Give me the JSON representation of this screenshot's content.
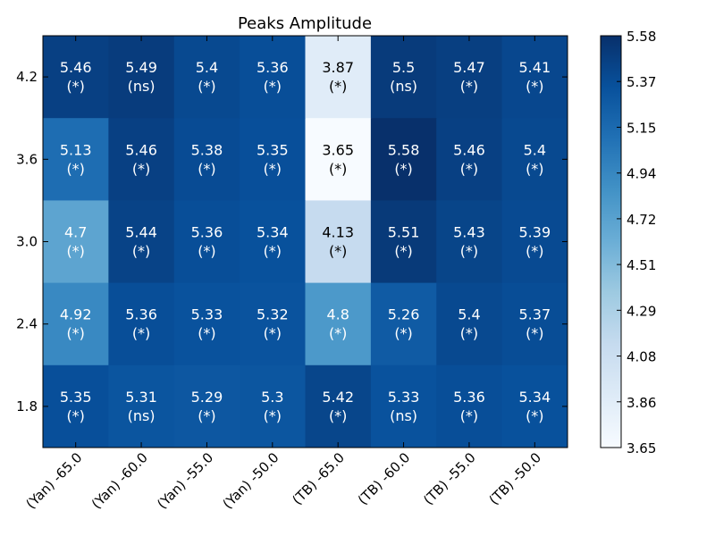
{
  "chart_data": {
    "type": "heatmap",
    "title": "Peaks Amplitude",
    "xlabel": "",
    "ylabel": "",
    "x_categories": [
      "(Yan) -65.0",
      "(Yan) -60.0",
      "(Yan) -55.0",
      "(Yan) -50.0",
      "(TB) -65.0",
      "(TB) -60.0",
      "(TB) -55.0",
      "(TB) -50.0"
    ],
    "y_categories": [
      "4.2",
      "3.6",
      "3.0",
      "2.4",
      "1.8"
    ],
    "values": [
      [
        5.46,
        5.49,
        5.4,
        5.36,
        3.87,
        5.5,
        5.47,
        5.41
      ],
      [
        5.13,
        5.46,
        5.38,
        5.35,
        3.65,
        5.58,
        5.46,
        5.4
      ],
      [
        4.7,
        5.44,
        5.36,
        5.34,
        4.13,
        5.51,
        5.43,
        5.39
      ],
      [
        4.92,
        5.36,
        5.33,
        5.32,
        4.8,
        5.26,
        5.4,
        5.37
      ],
      [
        5.35,
        5.31,
        5.29,
        5.3,
        5.42,
        5.33,
        5.36,
        5.34
      ]
    ],
    "annotations": [
      [
        "(*)",
        "(ns)",
        "(*)",
        "(*)",
        "(*)",
        "(ns)",
        "(*)",
        "(*)"
      ],
      [
        "(*)",
        "(*)",
        "(*)",
        "(*)",
        "(*)",
        "(*)",
        "(*)",
        "(*)"
      ],
      [
        "(*)",
        "(*)",
        "(*)",
        "(*)",
        "(*)",
        "(*)",
        "(*)",
        "(*)"
      ],
      [
        "(*)",
        "(*)",
        "(*)",
        "(*)",
        "(*)",
        "(*)",
        "(*)",
        "(*)"
      ],
      [
        "(*)",
        "(ns)",
        "(*)",
        "(*)",
        "(*)",
        "(ns)",
        "(*)",
        "(*)"
      ]
    ],
    "value_labels": [
      [
        "5.46",
        "5.49",
        "5.4",
        "5.36",
        "3.87",
        "5.5",
        "5.47",
        "5.41"
      ],
      [
        "5.13",
        "5.46",
        "5.38",
        "5.35",
        "3.65",
        "5.58",
        "5.46",
        "5.4"
      ],
      [
        "4.7",
        "5.44",
        "5.36",
        "5.34",
        "4.13",
        "5.51",
        "5.43",
        "5.39"
      ],
      [
        "4.92",
        "5.36",
        "5.33",
        "5.32",
        "4.8",
        "5.26",
        "5.4",
        "5.37"
      ],
      [
        "5.35",
        "5.31",
        "5.29",
        "5.3",
        "5.42",
        "5.33",
        "5.36",
        "5.34"
      ]
    ],
    "colorbar": {
      "min": 3.65,
      "max": 5.58,
      "colormap": "Blues",
      "tick_labels": [
        "5.58",
        "5.37",
        "5.15",
        "4.94",
        "4.72",
        "4.51",
        "4.29",
        "4.08",
        "3.86",
        "3.65"
      ]
    },
    "grid": false
  }
}
